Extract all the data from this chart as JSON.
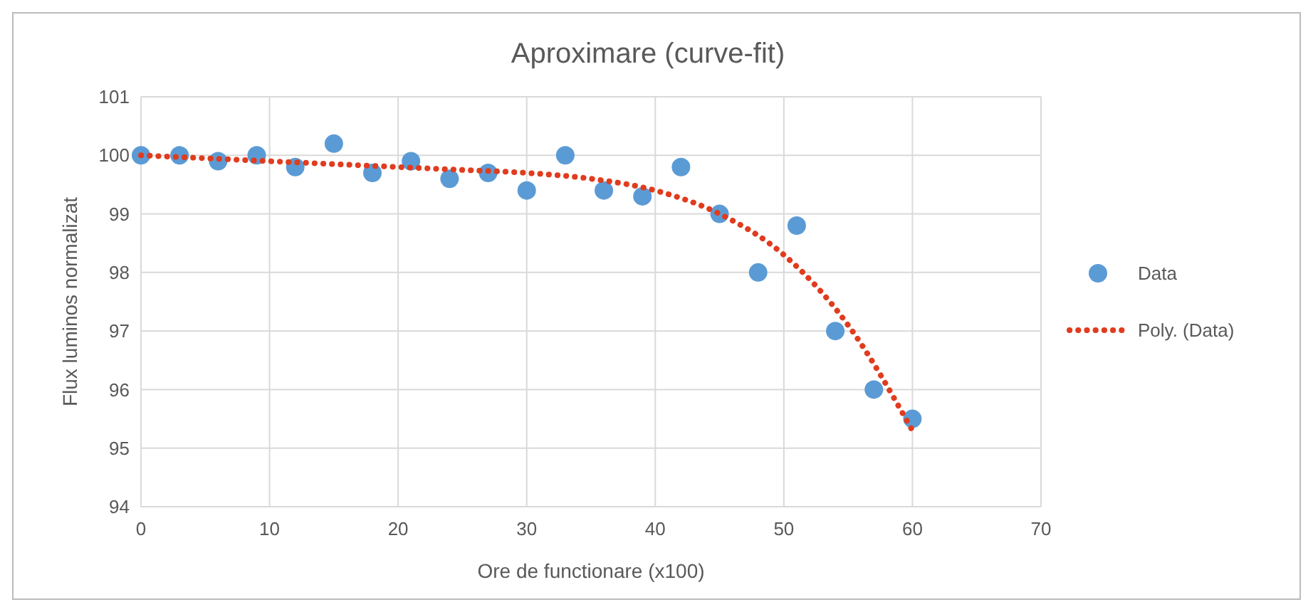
{
  "chart_data": {
    "type": "scatter",
    "title": "Aproximare (curve-fit)",
    "xlabel": "Ore de functionare (x100)",
    "ylabel": "Flux luminos normalizat",
    "x": [
      0,
      3,
      6,
      9,
      12,
      15,
      18,
      21,
      24,
      27,
      30,
      33,
      36,
      39,
      42,
      45,
      48,
      51,
      54,
      57,
      60
    ],
    "series": [
      {
        "name": "Data",
        "color": "#5b9bd5",
        "marker": "circle",
        "values": [
          100,
          100,
          99.9,
          100,
          99.8,
          100.2,
          99.7,
          99.9,
          99.6,
          99.7,
          99.4,
          100,
          99.4,
          99.3,
          99.8,
          99,
          98,
          98.8,
          97,
          96,
          95.5
        ]
      },
      {
        "name": "Poly. (Data)",
        "type": "line",
        "color": "#e03c1e",
        "line_style": "dotted",
        "x": [
          0,
          5,
          10,
          15,
          20,
          25,
          30,
          35,
          40,
          45,
          50,
          55,
          60
        ],
        "values": [
          100,
          99.95,
          99.9,
          99.85,
          99.8,
          99.75,
          99.7,
          99.6,
          99.4,
          99.0,
          98.3,
          97.1,
          95.3
        ]
      }
    ],
    "xlim": [
      0,
      70
    ],
    "xticks": [
      0,
      10,
      20,
      30,
      40,
      50,
      60,
      70
    ],
    "ylim": [
      94,
      101
    ],
    "yticks": [
      94,
      95,
      96,
      97,
      98,
      99,
      100,
      101
    ],
    "grid": true,
    "legend": "right"
  }
}
